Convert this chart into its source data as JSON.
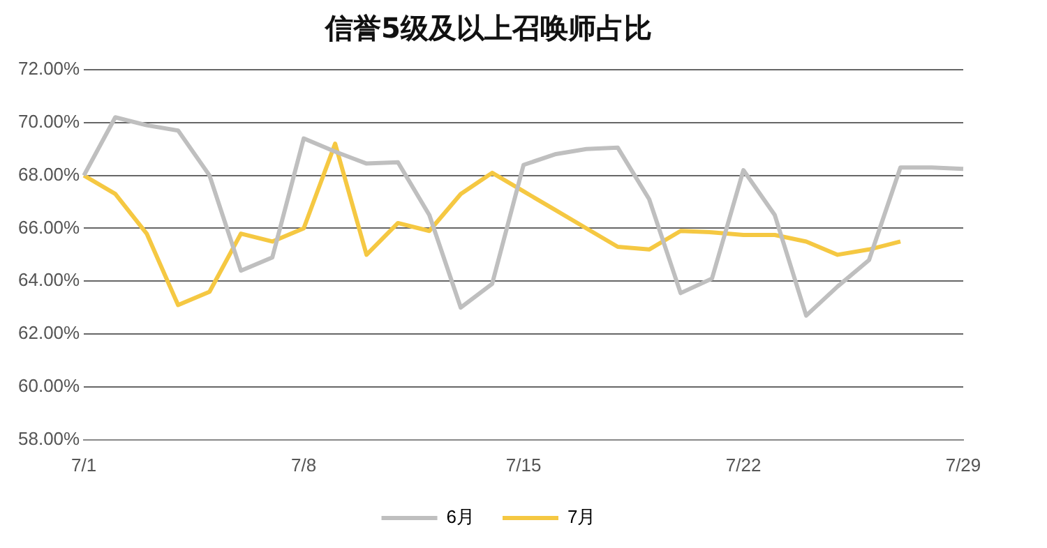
{
  "chart_data": {
    "type": "line",
    "title": "信誉5级及以上召唤师占比",
    "categories": [
      "7/1",
      null,
      null,
      null,
      null,
      null,
      null,
      "7/8",
      null,
      null,
      null,
      null,
      null,
      null,
      "7/15",
      null,
      null,
      null,
      null,
      null,
      null,
      "7/22",
      null,
      null,
      null,
      null,
      null,
      null,
      "7/29"
    ],
    "series": [
      {
        "name": "6月",
        "color": "#bfbfbf",
        "values": [
          68.0,
          70.2,
          69.9,
          69.7,
          68.0,
          64.4,
          64.9,
          69.4,
          68.9,
          68.45,
          68.5,
          66.5,
          63.0,
          63.9,
          68.4,
          68.8,
          69.0,
          69.05,
          67.1,
          63.55,
          64.1,
          68.2,
          66.5,
          62.7,
          63.8,
          64.8,
          68.3,
          68.3,
          68.25
        ]
      },
      {
        "name": "7月",
        "color": "#f5c842",
        "values": [
          68.0,
          67.3,
          65.8,
          63.1,
          63.6,
          65.8,
          65.5,
          66.0,
          69.2,
          65.0,
          66.2,
          65.9,
          67.3,
          68.1,
          67.4,
          66.7,
          66.0,
          65.3,
          65.2,
          65.9,
          65.85,
          65.75,
          65.75,
          65.5,
          65.0,
          65.2,
          65.5,
          null,
          null
        ]
      }
    ],
    "ylim": [
      58,
      72
    ],
    "yticks": [
      {
        "value": 58,
        "label": "58.00%"
      },
      {
        "value": 60,
        "label": "60.00%"
      },
      {
        "value": 62,
        "label": "62.00%"
      },
      {
        "value": 64,
        "label": "64.00%"
      },
      {
        "value": 66,
        "label": "66.00%"
      },
      {
        "value": 68,
        "label": "68.00%"
      },
      {
        "value": 70,
        "label": "70.00%"
      },
      {
        "value": 72,
        "label": "72.00%"
      }
    ],
    "grid": "y",
    "legend": "bottom",
    "marker": "none",
    "line_style": "solid"
  }
}
